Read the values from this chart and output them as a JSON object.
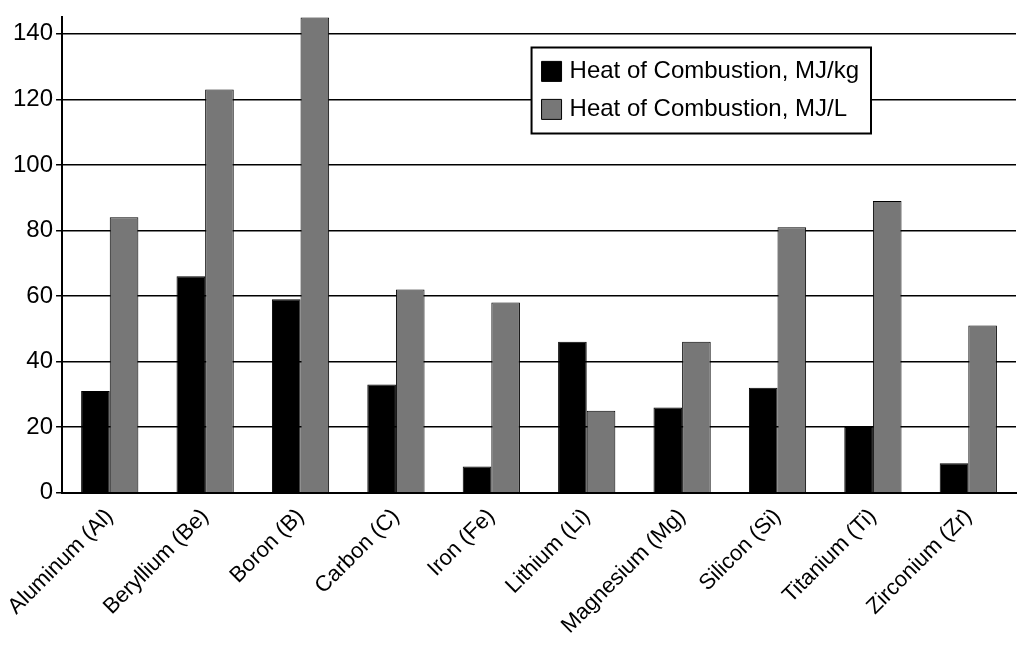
{
  "chart_data": {
    "type": "bar",
    "categories": [
      "Aluminum (Al)",
      "Beryllium (Be)",
      "Boron (B)",
      "Carbon (C)",
      "Iron (Fe)",
      "Lithium (Li)",
      "Magnesium (Mg)",
      "Silicon (Si)",
      "Titanium (Ti)",
      "Zirconium (Zr)"
    ],
    "series": [
      {
        "name": "Heat of Combustion, MJ/kg",
        "color": "#000000",
        "values": [
          31,
          66,
          59,
          33,
          8,
          46,
          26,
          32,
          20,
          9
        ]
      },
      {
        "name": "Heat of Combustion, MJ/L",
        "color": "#777777",
        "values": [
          84,
          123,
          145,
          62,
          58,
          25,
          46,
          81,
          89,
          51
        ]
      }
    ],
    "ylim": [
      0,
      145
    ],
    "yticks": [
      0,
      20,
      40,
      60,
      80,
      100,
      120,
      140
    ],
    "grid": "y",
    "legend": "top right"
  }
}
